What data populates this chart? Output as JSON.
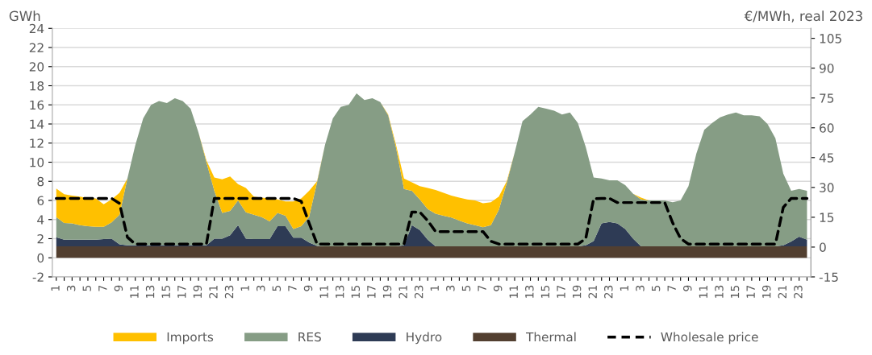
{
  "chart_data": {
    "type": "area",
    "stacked": true,
    "categories": [
      "1",
      null,
      "3",
      null,
      "5",
      null,
      "7",
      null,
      "9",
      null,
      "11",
      null,
      "13",
      null,
      "15",
      null,
      "17",
      null,
      "19",
      null,
      "21",
      null,
      "23",
      null,
      "1",
      null,
      "3",
      null,
      "5",
      null,
      "7",
      null,
      "9",
      null,
      "11",
      null,
      "13",
      null,
      "15",
      null,
      "17",
      null,
      "19",
      null,
      "21",
      null,
      "23",
      null,
      "1",
      null,
      "3",
      null,
      "5",
      null,
      "7",
      null,
      "9",
      null,
      "11",
      null,
      "13",
      null,
      "15",
      null,
      "17",
      null,
      "19",
      null,
      "21",
      null,
      "23",
      null,
      "1",
      null,
      "3",
      null,
      "5",
      null,
      "7",
      null,
      "9",
      null,
      "11",
      null,
      "13",
      null,
      "15",
      null,
      "17",
      null,
      "19",
      null,
      "21",
      null,
      "23",
      null
    ],
    "ylabel": "GWh",
    "y2label": "€/MWh, real 2023",
    "ylim": [
      -2,
      24
    ],
    "yticks": [
      -2,
      0,
      2,
      4,
      6,
      8,
      10,
      12,
      14,
      16,
      18,
      20,
      22,
      24
    ],
    "y2lim": [
      -15,
      110
    ],
    "y2ticks": [
      -15,
      0,
      15,
      30,
      45,
      60,
      75,
      90,
      105
    ],
    "grid": "y",
    "legend": "bottom",
    "series": [
      {
        "name": "Thermal",
        "color": "#523f30",
        "values": [
          1.2,
          1.2,
          1.2,
          1.2,
          1.2,
          1.2,
          1.2,
          1.2,
          1.2,
          1.2,
          1.2,
          1.2,
          1.2,
          1.2,
          1.2,
          1.2,
          1.2,
          1.2,
          1.2,
          1.2,
          1.2,
          1.2,
          1.2,
          1.2,
          1.2,
          1.2,
          1.2,
          1.2,
          1.2,
          1.2,
          1.2,
          1.2,
          1.2,
          1.2,
          1.2,
          1.2,
          1.2,
          1.2,
          1.2,
          1.2,
          1.2,
          1.2,
          1.2,
          1.2,
          1.2,
          1.2,
          1.2,
          1.2,
          1.2,
          1.2,
          1.2,
          1.2,
          1.2,
          1.2,
          1.2,
          1.2,
          1.2,
          1.2,
          1.2,
          1.2,
          1.2,
          1.2,
          1.2,
          1.2,
          1.2,
          1.2,
          1.2,
          1.2,
          1.2,
          1.2,
          1.2,
          1.2,
          1.2,
          1.2,
          1.2,
          1.2,
          1.2,
          1.2,
          1.2,
          1.2,
          1.2,
          1.2,
          1.2,
          1.2,
          1.2,
          1.2,
          1.2,
          1.2,
          1.2,
          1.2,
          1.2,
          1.2,
          1.2,
          1.2,
          1.2,
          1.2
        ]
      },
      {
        "name": "Hydro",
        "color": "#2e3b55",
        "values": [
          0.95,
          0.7,
          0.7,
          0.7,
          0.7,
          0.7,
          0.75,
          0.8,
          0.2,
          0.1,
          0.1,
          0.1,
          0.1,
          0.1,
          0.1,
          0.1,
          0.1,
          0.1,
          0.1,
          0.1,
          0.8,
          0.8,
          1.15,
          2.2,
          0.8,
          0.75,
          0.75,
          0.75,
          2.1,
          2.1,
          0.9,
          0.9,
          0.4,
          0.05,
          0,
          0,
          0,
          0,
          0,
          0,
          0,
          0,
          0,
          0,
          0.1,
          2.2,
          1.7,
          0.7,
          0,
          0,
          0,
          0,
          0,
          0,
          0,
          0,
          0,
          0,
          0,
          0,
          0,
          0,
          0,
          0,
          0,
          0,
          0,
          0.1,
          0.55,
          2.4,
          2.55,
          2.4,
          1.8,
          0.8,
          0,
          0,
          0,
          0,
          0,
          0,
          0,
          0,
          0,
          0,
          0,
          0,
          0,
          0,
          0,
          0,
          0,
          0,
          0.1,
          0.5,
          1.0,
          0.7
        ]
      },
      {
        "name": "RES",
        "color": "#869d85",
        "values": [
          2.1,
          1.75,
          1.7,
          1.5,
          1.4,
          1.35,
          1.3,
          1.7,
          3.1,
          7.0,
          10.5,
          13.3,
          14.7,
          15.1,
          14.9,
          15.4,
          15.1,
          14.3,
          11.8,
          8.7,
          5.0,
          2.7,
          2.55,
          2.6,
          2.75,
          2.55,
          2.3,
          1.85,
          1.4,
          1.1,
          0.9,
          1.2,
          2.7,
          6.65,
          10.6,
          13.4,
          14.6,
          14.8,
          16.0,
          15.3,
          15.5,
          15.1,
          13.7,
          10.3,
          5.9,
          3.6,
          3.2,
          3.2,
          3.4,
          3.2,
          3.0,
          2.7,
          2.4,
          2.2,
          2.0,
          2.2,
          3.8,
          6.6,
          9.8,
          13.1,
          13.8,
          14.6,
          14.4,
          14.2,
          13.8,
          14.0,
          12.9,
          10.3,
          6.65,
          4.7,
          4.35,
          4.5,
          4.6,
          4.7,
          4.9,
          4.8,
          4.8,
          4.8,
          4.6,
          4.8,
          6.3,
          9.7,
          12.2,
          12.9,
          13.5,
          13.8,
          14.0,
          13.7,
          13.7,
          13.6,
          12.8,
          11.3,
          7.5,
          5.3,
          5.0,
          5.1
        ]
      },
      {
        "name": "Imports",
        "color": "#ffc000",
        "values": [
          3.0,
          3.0,
          2.9,
          3.0,
          2.95,
          2.95,
          2.35,
          2.4,
          2.3,
          0,
          0,
          0,
          0,
          0,
          0,
          0,
          0,
          0,
          0,
          0.2,
          1.4,
          3.5,
          3.6,
          1.7,
          2.55,
          1.9,
          2.05,
          2.4,
          1.4,
          1.5,
          2.9,
          2.9,
          2.7,
          0.1,
          0,
          0,
          0,
          0,
          0,
          0,
          0,
          0,
          0.1,
          0.3,
          1.1,
          0.9,
          1.4,
          2.2,
          2.5,
          2.4,
          2.3,
          2.4,
          2.5,
          2.6,
          2.5,
          2.4,
          1.4,
          0.2,
          0,
          0,
          0,
          0,
          0,
          0,
          0,
          0,
          0,
          0,
          0,
          0,
          0,
          0,
          0,
          0,
          0.2,
          0,
          0,
          0,
          0,
          0,
          0,
          0,
          0,
          0,
          0,
          0,
          0,
          0,
          0,
          0,
          0,
          0,
          0,
          0,
          0,
          0
        ]
      },
      {
        "name": "Wholesale price",
        "type": "line",
        "axis": "y2",
        "color": "#000000",
        "line_style": "dashed",
        "marker": "none",
        "values": [
          24.5,
          24.5,
          24.5,
          24.5,
          24.5,
          24.5,
          24.5,
          24.5,
          22,
          5,
          1.5,
          1.5,
          1.5,
          1.5,
          1.5,
          1.5,
          1.5,
          1.5,
          1.5,
          1.5,
          24.5,
          24.5,
          24.5,
          24.5,
          24.5,
          24.5,
          24.5,
          24.5,
          24.5,
          24.5,
          24.5,
          23,
          12,
          1.5,
          1.5,
          1.5,
          1.5,
          1.5,
          1.5,
          1.5,
          1.5,
          1.5,
          1.5,
          1.5,
          1.5,
          17.6,
          17.6,
          13.3,
          7.8,
          7.8,
          7.8,
          7.8,
          7.8,
          7.8,
          7.8,
          2.9,
          1.5,
          1.5,
          1.5,
          1.5,
          1.5,
          1.5,
          1.5,
          1.5,
          1.5,
          1.5,
          1.5,
          4.3,
          24.3,
          24.5,
          24.5,
          22.4,
          22.4,
          22.4,
          22.4,
          22.4,
          22.4,
          22.4,
          12.2,
          4.3,
          1.5,
          1.5,
          1.5,
          1.5,
          1.5,
          1.5,
          1.5,
          1.5,
          1.5,
          1.5,
          1.5,
          1.5,
          20,
          24.5,
          24.5,
          24.5
        ]
      }
    ]
  }
}
